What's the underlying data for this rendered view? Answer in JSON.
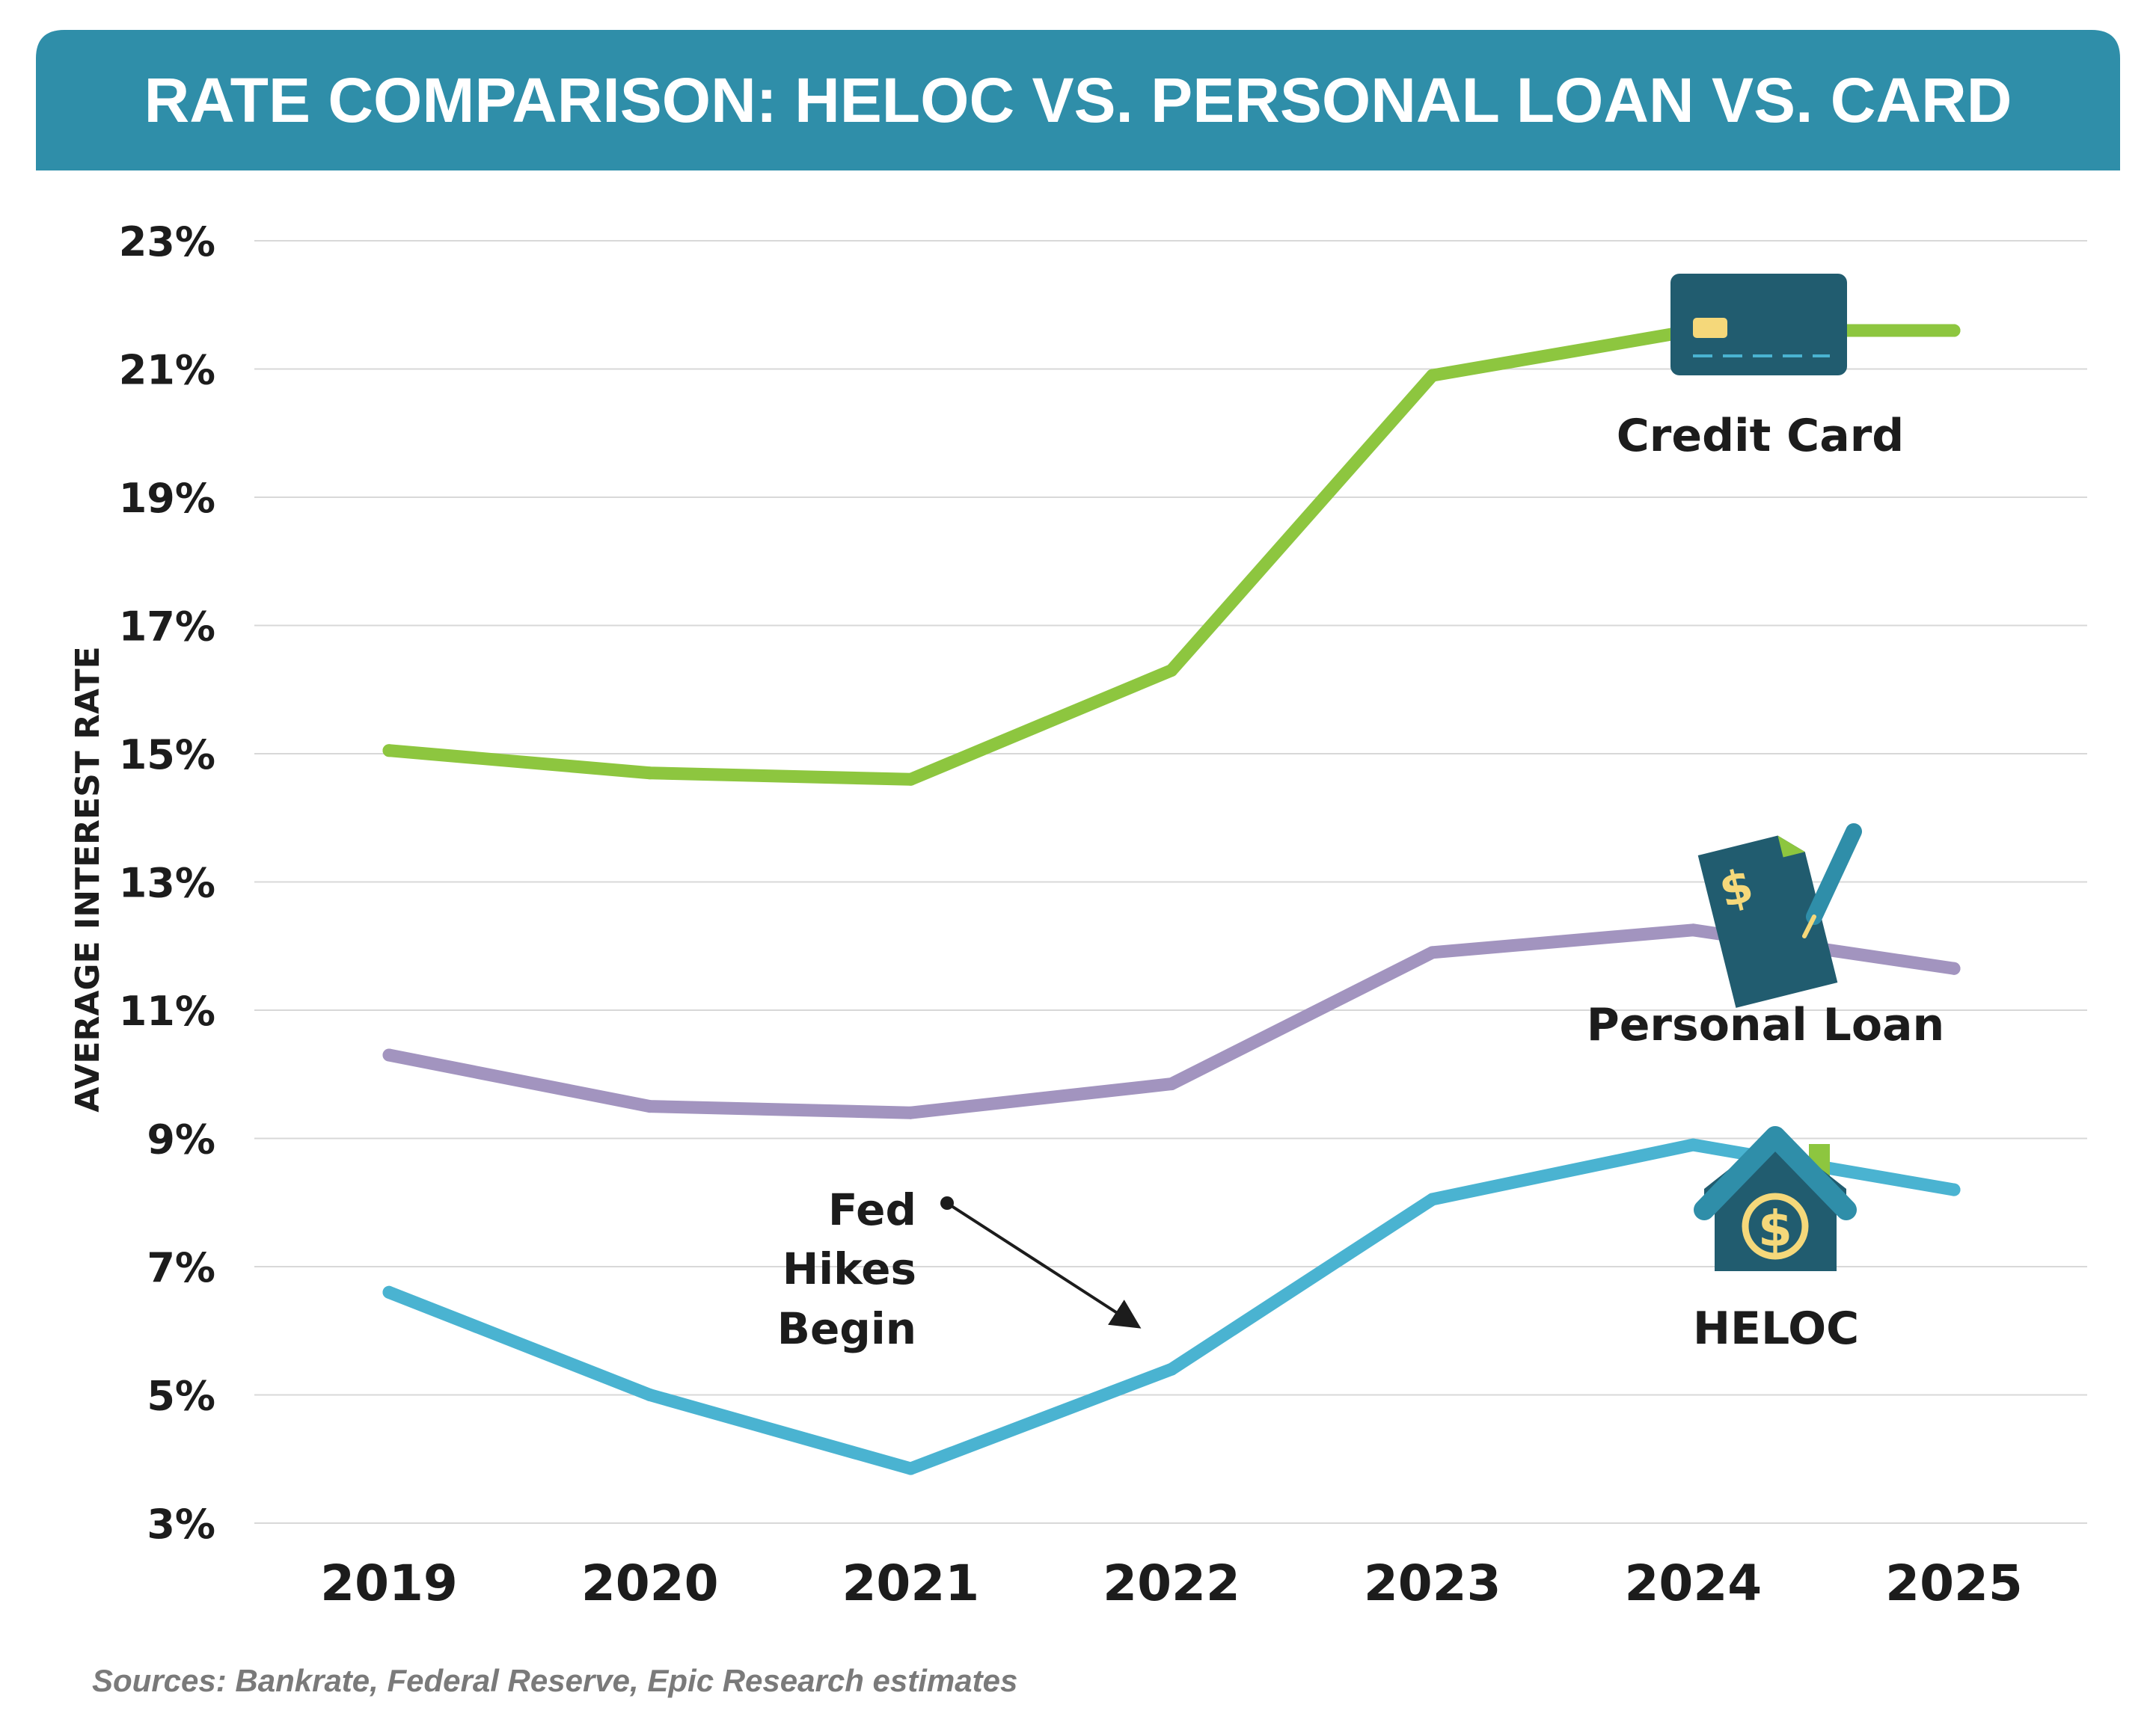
{
  "chart_data": {
    "type": "line",
    "title": "RATE COMPARISON: HELOC VS. PERSONAL LOAN VS. CARD",
    "ylabel": "AVERAGE INTEREST RATE",
    "xlabel": "",
    "x": [
      "2019",
      "2020",
      "2021",
      "2022",
      "2023",
      "2024",
      "2025"
    ],
    "ylim": [
      3,
      23
    ],
    "yticks": [
      3,
      5,
      7,
      9,
      11,
      13,
      15,
      17,
      19,
      21,
      23
    ],
    "ytick_labels": [
      "3%",
      "5%",
      "7%",
      "9%",
      "11%",
      "13%",
      "15%",
      "17%",
      "19%",
      "21%",
      "23%"
    ],
    "grid": true,
    "series": [
      {
        "name": "Credit Card",
        "color": "#8dc63f",
        "icon": "credit-card-icon",
        "values": [
          15.05,
          14.7,
          14.6,
          16.3,
          20.9,
          21.6,
          21.6
        ]
      },
      {
        "name": "Personal Loan",
        "color": "#a294bf",
        "icon": "loan-document-icon",
        "values": [
          10.3,
          9.5,
          9.4,
          9.85,
          11.9,
          12.25,
          11.65
        ]
      },
      {
        "name": "HELOC",
        "color": "#4ab3d1",
        "icon": "house-dollar-icon",
        "values": [
          6.6,
          5.0,
          3.85,
          5.4,
          8.05,
          8.9,
          8.2
        ]
      }
    ],
    "annotation": {
      "text": [
        "Fed",
        "Hikes",
        "Begin"
      ],
      "points_to": "2022"
    },
    "source": "Sources: Bankrate, Federal Reserve, Epic Research estimates"
  }
}
